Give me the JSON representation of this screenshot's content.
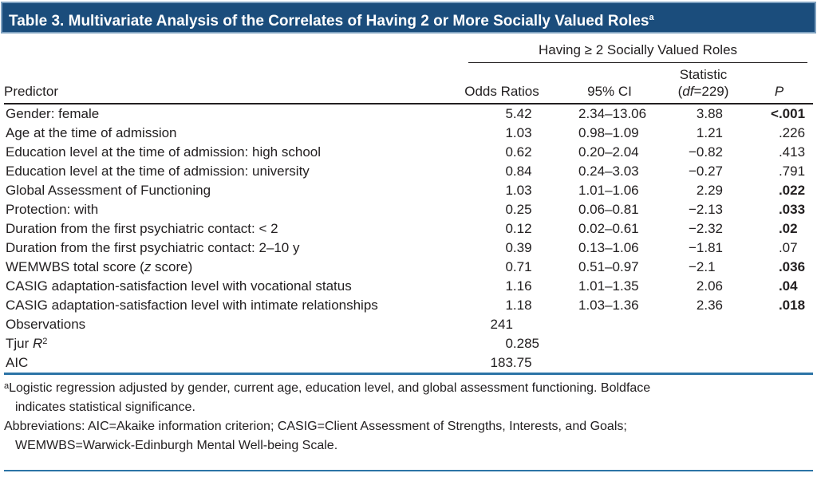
{
  "title": "Table 3. Multivariate Analysis of the Correlates of Having 2 or More Socially Valued Roles",
  "title_superscript": "a",
  "spanner": "Having ≥ 2 Socially Valued Roles",
  "columns": {
    "predictor": "Predictor",
    "odds": "Odds Ratios",
    "ci": "95% CI",
    "stat_line1": "Statistic",
    "stat_df_pre": "(",
    "stat_df_italic": "df",
    "stat_df_post": "=229)",
    "p": "P"
  },
  "rows": [
    {
      "pre": "Gender: female",
      "or": "5.42",
      "ci": "2.34–13.06",
      "stat": "3.88",
      "p": "<.001",
      "p_bold": true
    },
    {
      "pre": "Age at the time of admission",
      "or": "1.03",
      "ci": "0.98–1.09",
      "stat": "1.21",
      "p": ".226",
      "p_bold": false
    },
    {
      "pre": "Education level at the time of admission: high school",
      "or": "0.62",
      "ci": "0.20–2.04",
      "stat": "−0.82",
      "p": ".413",
      "p_bold": false
    },
    {
      "pre": "Education level at the time of admission: university",
      "or": "0.84",
      "ci": "0.24–3.03",
      "stat": "−0.27",
      "p": ".791",
      "p_bold": false
    },
    {
      "pre": "Global Assessment of Functioning",
      "or": "1.03",
      "ci": "1.01–1.06",
      "stat": "2.29",
      "p": ".022",
      "p_bold": true
    },
    {
      "pre": "Protection: with",
      "or": "0.25",
      "ci": "0.06–0.81",
      "stat": "−2.13",
      "p": ".033",
      "p_bold": true
    },
    {
      "pre": "Duration from the first psychiatric contact: < 2",
      "or": "0.12",
      "ci": "0.02–0.61",
      "stat": "−2.32",
      "p": ".02",
      "p_bold": true
    },
    {
      "pre": "Duration from the first psychiatric contact: 2–10 y",
      "or": "0.39",
      "ci": "0.13–1.06",
      "stat": "−1.81",
      "p": ".07",
      "p_bold": false
    },
    {
      "pre": "WEMWBS total score (",
      "it": "z",
      "post": " score)",
      "or": "0.71",
      "ci": "0.51–0.97",
      "stat": "−2.1",
      "p": ".036",
      "p_bold": true
    },
    {
      "pre": "CASIG adaptation-satisfaction level with vocational status",
      "or": "1.16",
      "ci": "1.01–1.35",
      "stat": "2.06",
      "p": ".04",
      "p_bold": true
    },
    {
      "pre": "CASIG adaptation-satisfaction level with intimate relationships",
      "or": "1.18",
      "ci": "1.03–1.36",
      "stat": "2.36",
      "p": ".018",
      "p_bold": true
    },
    {
      "pre": "Observations",
      "or": "241"
    },
    {
      "pre": "Tjur ",
      "it": "R",
      "sup": "2",
      "or": "0.285"
    },
    {
      "pre": "AIC",
      "or": "183.75"
    }
  ],
  "footnote_a": {
    "marker": "a",
    "line1": "Logistic regression adjusted by gender, current age, education level, and global assessment functioning. Boldface",
    "line2": "indicates statistical significance."
  },
  "abbreviations": {
    "line1": "Abbreviations: AIC=Akaike information criterion; CASIG=Client Assessment of Strengths, Interests, and Goals;",
    "line2": "WEMWBS=Warwick-Edinburgh Mental Well-being Scale."
  },
  "colors": {
    "title_bar_background": "#1b4d7c",
    "title_bar_border": "#7fa1c0",
    "title_text": "#ffffff",
    "rule_blue": "#2c74a6",
    "rule_black": "#232021",
    "body_text": "#232021"
  }
}
